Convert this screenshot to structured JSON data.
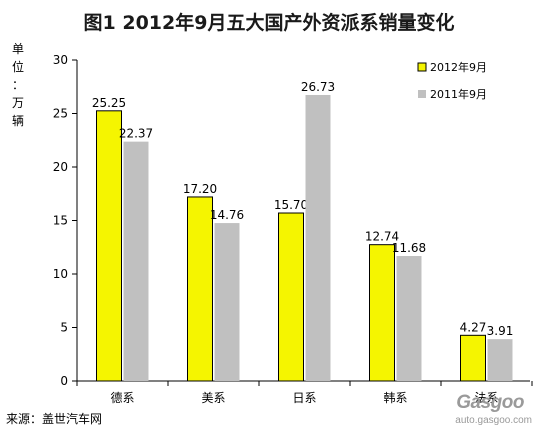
{
  "chart_data": {
    "type": "bar",
    "title": "图1 2012年9月五大国产外资派系销量变化",
    "ylabel_chars": [
      "单",
      "位",
      "：",
      "万",
      "辆"
    ],
    "categories": [
      "德系",
      "美系",
      "日系",
      "韩系",
      "法系"
    ],
    "series": [
      {
        "name": "2012年9月",
        "values": [
          25.25,
          17.2,
          15.7,
          12.74,
          4.27
        ],
        "color": "#f5f500"
      },
      {
        "name": "2011年9月",
        "values": [
          22.37,
          14.76,
          26.73,
          11.68,
          3.91
        ],
        "color": "#c0c0c0"
      }
    ],
    "value_labels": [
      [
        "25.25",
        "17.20",
        "15.70",
        "12.74",
        "4.27"
      ],
      [
        "22.37",
        "14.76",
        "26.73",
        "11.68",
        "3.91"
      ]
    ],
    "ylim": [
      0,
      30
    ],
    "yticks": [
      0,
      5,
      10,
      15,
      20,
      25,
      30
    ],
    "grid": false,
    "legend_position": "top-right"
  },
  "footer": {
    "source": "来源：盖世汽车网"
  },
  "watermark": {
    "logo": "Gasgoo",
    "url": "auto.gasgoo.com"
  }
}
